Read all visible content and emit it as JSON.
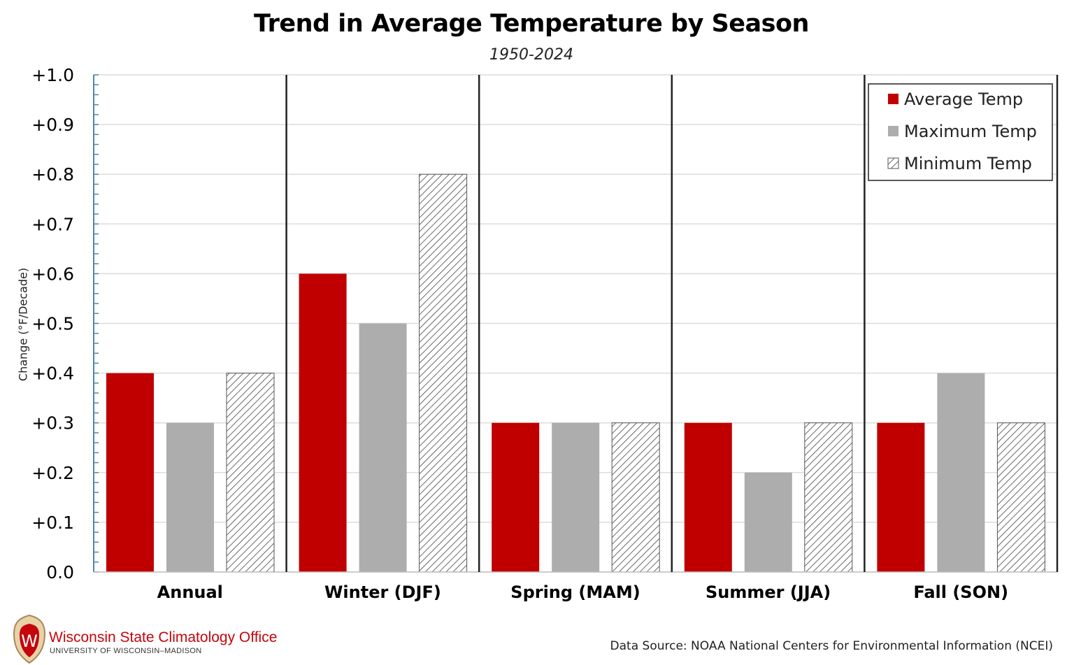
{
  "chart_data": {
    "type": "bar",
    "title": "Trend in Average Temperature by Season",
    "subtitle": "1950-2024",
    "xlabel": "",
    "ylabel": "Change (°F/Decade)",
    "ylim": [
      0,
      1.0
    ],
    "yticks": [
      "0.0",
      "+0.1",
      "+0.2",
      "+0.3",
      "+0.4",
      "+0.5",
      "+0.6",
      "+0.7",
      "+0.8",
      "+0.9",
      "+1.0"
    ],
    "categories": [
      "Annual",
      "Winter (DJF)",
      "Spring (MAM)",
      "Summer (JJA)",
      "Fall (SON)"
    ],
    "series": [
      {
        "name": "Average Temp",
        "color": "#c00000",
        "fill": "solid",
        "values": [
          0.4,
          0.6,
          0.3,
          0.3,
          0.3
        ]
      },
      {
        "name": "Maximum Temp",
        "color": "#adadad",
        "fill": "solid",
        "values": [
          0.3,
          0.5,
          0.3,
          0.2,
          0.4
        ]
      },
      {
        "name": "Minimum Temp",
        "color": "#444444",
        "fill": "hatch",
        "values": [
          0.4,
          0.8,
          0.3,
          0.3,
          0.3
        ]
      }
    ],
    "grid": true,
    "legend": "top-right"
  },
  "footer": {
    "source": "Data Source: NOAA National Centers for Environmental Information (NCEI)",
    "logo_name": "Wisconsin State Climatology Office",
    "logo_sub": "UNIVERSITY OF WISCONSIN–MADISON",
    "logo_crest_letter": "W"
  }
}
